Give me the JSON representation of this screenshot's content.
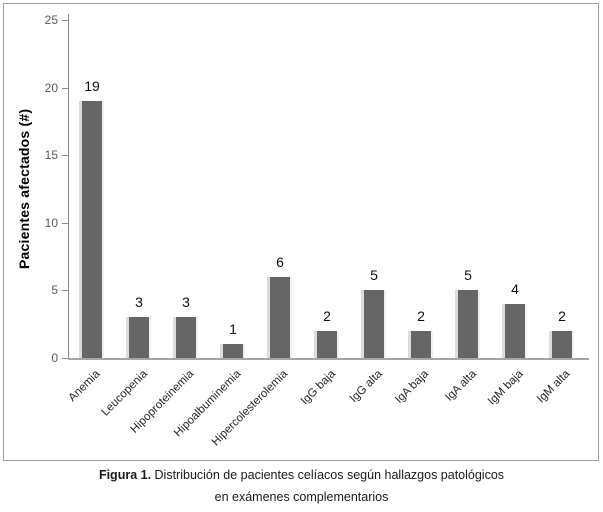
{
  "figure": {
    "caption": {
      "label": "Figura 1.",
      "text": " Distribución de pacientes celíacos según hallazgos patológicos",
      "line2": "en exámenes complementarios"
    }
  },
  "chart_data": {
    "type": "bar",
    "title": "",
    "xlabel": "",
    "ylabel": "Pacientes afectados (#)",
    "ylim": [
      0,
      25
    ],
    "yticks": [
      0,
      5,
      10,
      15,
      20,
      25
    ],
    "grid": false,
    "legend": "none",
    "bar_value_labels_shown": true,
    "categories": [
      "Anemia",
      "Leucopenia",
      "Hipoproteinemia",
      "Hipoalbuminemia",
      "Hipercolesterolemia",
      "IgG baja",
      "IgG alta",
      "IgA baja",
      "IgA alta",
      "IgM baja",
      "IgM alta"
    ],
    "values": [
      19,
      3,
      3,
      1,
      6,
      2,
      5,
      2,
      5,
      4,
      2
    ],
    "colors": {
      "bar": "#666666",
      "bar_highlight": "#dcdcdc",
      "axis": "#8c8c8c",
      "baseline": "#a6a6a6",
      "tick_label": "#595959",
      "category_label": "#262626",
      "value_label": "#0d0d0d"
    }
  }
}
